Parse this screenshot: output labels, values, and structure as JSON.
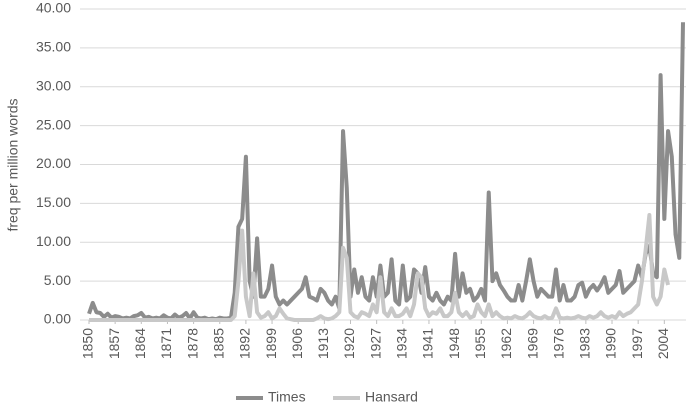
{
  "chart_data": {
    "type": "line",
    "y_label": "freq per million words",
    "x": [
      1850,
      1851,
      1852,
      1853,
      1854,
      1855,
      1856,
      1857,
      1858,
      1859,
      1860,
      1861,
      1862,
      1863,
      1864,
      1865,
      1866,
      1867,
      1868,
      1869,
      1870,
      1871,
      1872,
      1873,
      1874,
      1875,
      1876,
      1877,
      1878,
      1879,
      1880,
      1881,
      1882,
      1883,
      1884,
      1885,
      1886,
      1887,
      1888,
      1889,
      1890,
      1891,
      1892,
      1893,
      1894,
      1895,
      1896,
      1897,
      1898,
      1899,
      1900,
      1901,
      1902,
      1903,
      1904,
      1905,
      1906,
      1907,
      1908,
      1909,
      1910,
      1911,
      1912,
      1913,
      1914,
      1915,
      1916,
      1917,
      1918,
      1919,
      1920,
      1921,
      1922,
      1923,
      1924,
      1925,
      1926,
      1927,
      1928,
      1929,
      1930,
      1931,
      1932,
      1933,
      1934,
      1935,
      1936,
      1937,
      1938,
      1939,
      1940,
      1941,
      1942,
      1943,
      1944,
      1945,
      1946,
      1947,
      1948,
      1949,
      1950,
      1951,
      1952,
      1953,
      1954,
      1955,
      1956,
      1957,
      1958,
      1959,
      1960,
      1961,
      1962,
      1963,
      1964,
      1965,
      1966,
      1967,
      1968,
      1969,
      1970,
      1971,
      1972,
      1973,
      1974,
      1975,
      1976,
      1977,
      1978,
      1979,
      1980,
      1981,
      1982,
      1983,
      1984,
      1985,
      1986,
      1987,
      1988,
      1989,
      1990,
      1991,
      1992,
      1993,
      1994,
      1995,
      1996,
      1997,
      1998,
      1999,
      2000,
      2001,
      2002,
      2003,
      2004,
      2005,
      2006,
      2007,
      2008,
      2009
    ],
    "series": [
      {
        "name": "Times",
        "color": "#8c8c8c",
        "values": [
          0.8,
          2.2,
          1.0,
          0.9,
          0.4,
          0.8,
          0.3,
          0.5,
          0.4,
          0.2,
          0.3,
          0.2,
          0.5,
          0.6,
          0.9,
          0.3,
          0.4,
          0.2,
          0.3,
          0.2,
          0.6,
          0.3,
          0.2,
          0.7,
          0.3,
          0.5,
          0.9,
          0.2,
          1.0,
          0.3,
          0.2,
          0.3,
          0.1,
          0.2,
          0.1,
          0.3,
          0.2,
          0.2,
          0.3,
          3.5,
          12.0,
          13.0,
          21.0,
          5.0,
          3.0,
          10.5,
          3.0,
          3.0,
          4.0,
          7.0,
          3.0,
          2.0,
          2.5,
          2.0,
          2.5,
          3.0,
          3.5,
          4.0,
          5.5,
          3.0,
          2.8,
          2.5,
          4.0,
          3.5,
          2.5,
          2.0,
          3.0,
          1.5,
          24.3,
          17.0,
          3.0,
          6.5,
          3.5,
          5.5,
          3.0,
          2.5,
          5.5,
          3.0,
          7.0,
          3.0,
          3.5,
          7.8,
          2.5,
          2.0,
          7.0,
          2.5,
          3.0,
          6.5,
          6.0,
          3.5,
          6.8,
          3.0,
          2.5,
          3.5,
          2.5,
          2.0,
          3.0,
          2.5,
          8.5,
          3.0,
          6.0,
          3.5,
          4.0,
          2.5,
          3.0,
          4.0,
          2.5,
          16.4,
          5.0,
          6.0,
          4.5,
          3.8,
          3.0,
          2.5,
          2.5,
          4.5,
          2.5,
          5.0,
          7.8,
          5.0,
          3.0,
          4.0,
          3.5,
          3.0,
          3.0,
          6.5,
          2.5,
          4.5,
          2.5,
          2.5,
          3.0,
          4.5,
          4.8,
          3.0,
          4.0,
          4.5,
          3.8,
          4.5,
          5.5,
          3.5,
          4.0,
          4.5,
          6.3,
          3.5,
          4.0,
          4.5,
          5.0,
          7.0,
          5.5,
          8.5,
          9.5,
          6.0,
          5.5,
          31.5,
          13.0,
          24.3,
          21.0,
          11.0,
          8.0,
          38.3
        ]
      },
      {
        "name": "Hansard",
        "color": "#c8c8c8",
        "values": [
          0,
          0,
          0,
          0,
          0,
          0,
          0,
          0,
          0,
          0,
          0,
          0,
          0,
          0,
          0,
          0,
          0,
          0,
          0,
          0,
          0,
          0,
          0,
          0,
          0,
          0,
          0,
          0,
          0,
          0,
          0,
          0,
          0,
          0,
          0,
          0,
          0,
          0,
          0,
          0.5,
          5.0,
          11.5,
          3.0,
          0.5,
          6.0,
          1.0,
          0.3,
          0.5,
          1.0,
          0.2,
          0.5,
          1.5,
          0.8,
          0.2,
          0.1,
          0,
          0,
          0,
          0,
          0,
          0,
          0.2,
          0.5,
          0.2,
          0.1,
          0.2,
          0.5,
          1.0,
          9.3,
          8.0,
          1.0,
          0.5,
          0.3,
          1.0,
          0.8,
          0.5,
          2.0,
          1.0,
          5.5,
          1.0,
          0.5,
          1.5,
          0.5,
          0.5,
          0.8,
          1.5,
          0.5,
          2.0,
          6.0,
          5.5,
          1.5,
          0.5,
          1.0,
          0.8,
          1.5,
          0.5,
          0.5,
          1.0,
          3.5,
          1.0,
          0.5,
          1.0,
          0.3,
          0.5,
          2.0,
          1.0,
          0.5,
          2.0,
          0.5,
          1.0,
          0.5,
          0.2,
          0.3,
          0.2,
          0.5,
          0.3,
          0.2,
          0.5,
          1.0,
          0.5,
          0.3,
          0.2,
          0.5,
          0.2,
          0.3,
          1.5,
          0.3,
          0.2,
          0.3,
          0.2,
          0.3,
          0.5,
          0.3,
          0.2,
          0.5,
          0.3,
          0.5,
          1.0,
          0.5,
          0.3,
          0.5,
          0.3,
          1.0,
          0.5,
          0.8,
          1.0,
          1.5,
          2.0,
          5.0,
          9.0,
          13.5,
          3.0,
          2.0,
          3.0,
          6.5,
          4.5,
          null,
          null,
          null,
          null
        ]
      }
    ],
    "xlim": [
      1850,
      2009
    ],
    "xticks": [
      1850,
      1857,
      1864,
      1871,
      1878,
      1885,
      1892,
      1899,
      1906,
      1913,
      1920,
      1927,
      1934,
      1941,
      1948,
      1955,
      1962,
      1969,
      1976,
      1983,
      1990,
      1997,
      2004
    ],
    "ylim": [
      0,
      40
    ],
    "yticks": [
      {
        "value": 0,
        "label": "0.00"
      },
      {
        "value": 5,
        "label": "5.00"
      },
      {
        "value": 10,
        "label": "10.00"
      },
      {
        "value": 15,
        "label": "15.00"
      },
      {
        "value": 20,
        "label": "20.00"
      },
      {
        "value": 25,
        "label": "25.00"
      },
      {
        "value": 30,
        "label": "30.00"
      },
      {
        "value": 35,
        "label": "35.00"
      },
      {
        "value": 40,
        "label": "40.00"
      }
    ],
    "grid": true,
    "legend": "bottom"
  }
}
